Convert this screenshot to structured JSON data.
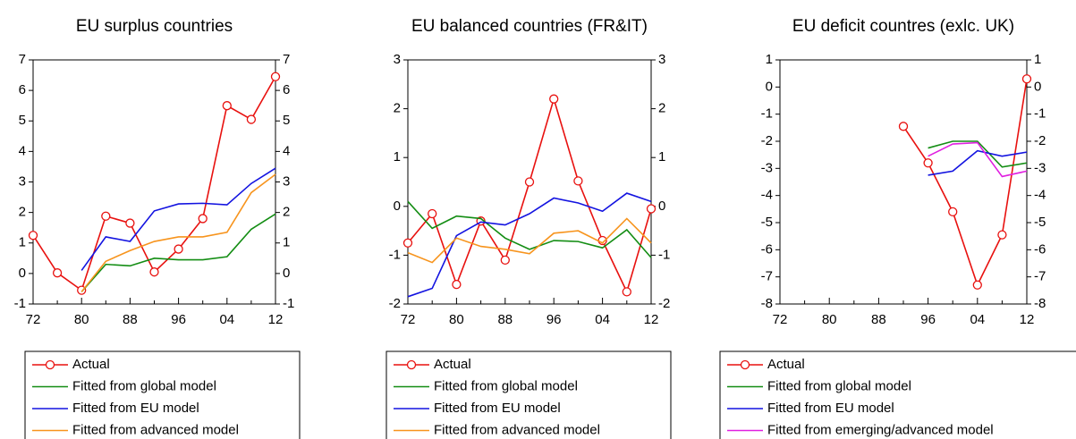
{
  "chart_data": [
    {
      "type": "line",
      "title": "EU surplus countries",
      "categories": [
        "72",
        null,
        "80",
        null,
        "88",
        null,
        "96",
        null,
        "04",
        null,
        "12"
      ],
      "ylim": [
        -1,
        7
      ],
      "yticks": [
        -1,
        0,
        1,
        2,
        3,
        4,
        5,
        6,
        7
      ],
      "legend": "below",
      "series": [
        {
          "name": "Actual",
          "color": "#e8110f",
          "marker": "circle",
          "values": [
            1.25,
            0.02,
            -0.55,
            1.88,
            1.65,
            0.05,
            0.8,
            1.8,
            5.5,
            5.05,
            6.45
          ]
        },
        {
          "name": "Fitted from global model",
          "color": "#138d13",
          "values": [
            null,
            null,
            -0.6,
            0.3,
            0.25,
            0.5,
            0.45,
            0.45,
            0.55,
            1.45,
            1.95
          ]
        },
        {
          "name": "Fitted from EU model",
          "color": "#1313e0",
          "values": [
            null,
            null,
            0.1,
            1.2,
            1.05,
            2.05,
            2.28,
            2.3,
            2.25,
            2.95,
            3.45
          ]
        },
        {
          "name": "Fitted from advanced model",
          "color": "#f7941d",
          "values": [
            null,
            null,
            -0.6,
            0.4,
            0.75,
            1.05,
            1.2,
            1.2,
            1.35,
            2.65,
            3.25
          ]
        }
      ]
    },
    {
      "type": "line",
      "title": "EU balanced countries (FR&IT)",
      "categories": [
        "72",
        null,
        "80",
        null,
        "88",
        null,
        "96",
        null,
        "04",
        null,
        "12"
      ],
      "ylim": [
        -2,
        3
      ],
      "yticks": [
        -2,
        -1,
        0,
        1,
        2,
        3
      ],
      "legend": "below",
      "series": [
        {
          "name": "Actual",
          "color": "#e8110f",
          "marker": "circle",
          "values": [
            -0.75,
            -0.15,
            -1.6,
            -0.3,
            -1.1,
            0.5,
            2.2,
            0.52,
            -0.7,
            -1.75,
            -0.05
          ]
        },
        {
          "name": "Fitted from global model",
          "color": "#138d13",
          "values": [
            0.1,
            -0.45,
            -0.2,
            -0.25,
            -0.65,
            -0.88,
            -0.7,
            -0.72,
            -0.85,
            -0.48,
            -1.05
          ]
        },
        {
          "name": "Fitted from EU model",
          "color": "#1313e0",
          "values": [
            -1.85,
            -1.68,
            -0.6,
            -0.32,
            -0.38,
            -0.15,
            0.17,
            0.07,
            -0.1,
            0.27,
            0.1
          ]
        },
        {
          "name": "Fitted from advanced model",
          "color": "#f7941d",
          "values": [
            -0.95,
            -1.15,
            -0.65,
            -0.82,
            -0.88,
            -0.97,
            -0.55,
            -0.5,
            -0.75,
            -0.25,
            -0.75
          ]
        }
      ]
    },
    {
      "type": "line",
      "title": "EU deficit countres (exlc. UK)",
      "categories": [
        "72",
        null,
        "80",
        null,
        "88",
        null,
        "96",
        null,
        "04",
        null,
        "12"
      ],
      "ylim": [
        -8,
        1
      ],
      "yticks": [
        -8,
        -7,
        -6,
        -5,
        -4,
        -3,
        -2,
        -1,
        0,
        1
      ],
      "legend": "below",
      "series": [
        {
          "name": "Actual",
          "color": "#e8110f",
          "marker": "circle",
          "values": [
            null,
            null,
            null,
            null,
            null,
            -1.45,
            -2.8,
            -4.6,
            -7.3,
            -5.45,
            0.3
          ]
        },
        {
          "name": "Fitted from global model",
          "color": "#138d13",
          "values": [
            null,
            null,
            null,
            null,
            null,
            null,
            -2.25,
            -2.0,
            -2.0,
            -2.95,
            -2.8
          ]
        },
        {
          "name": "Fitted from EU model",
          "color": "#1313e0",
          "values": [
            null,
            null,
            null,
            null,
            null,
            null,
            -3.25,
            -3.1,
            -2.35,
            -2.55,
            -2.4
          ]
        },
        {
          "name": "Fitted from emerging/advanced model",
          "color": "#e020e0",
          "values": [
            null,
            null,
            null,
            null,
            null,
            null,
            -2.55,
            -2.1,
            -2.05,
            -3.3,
            -3.1
          ]
        }
      ]
    }
  ]
}
